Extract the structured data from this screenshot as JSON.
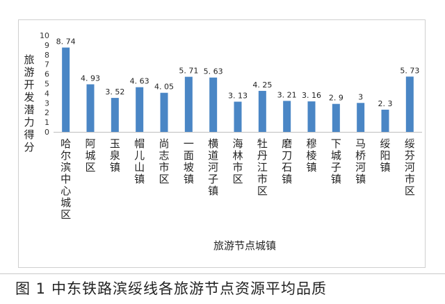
{
  "caption": {
    "figure_number": "图 1",
    "text": "中东铁路滨绥线各旅游节点资源平均品质"
  },
  "chart_data": {
    "type": "bar",
    "title": "",
    "ylabel": "旅游开发潜力得分",
    "xlabel": "旅游节点城镇",
    "ylim": [
      0,
      10
    ],
    "yticks": [
      "0",
      "1",
      "2",
      "3",
      "4",
      "5",
      "6",
      "7",
      "8",
      "9",
      "10"
    ],
    "grid": false,
    "bar_color": "#4a86c5",
    "categories": [
      "哈尔滨中心城区",
      "阿城区",
      "玉泉镇",
      "帽儿山镇",
      "尚志市区",
      "一面坡镇",
      "横道河子镇",
      "海林市区",
      "牡丹江市区",
      "磨刀石镇",
      "穆棱镇",
      "下城子镇",
      "马桥河镇",
      "绥阳镇",
      "绥芬河市区"
    ],
    "values": [
      8.74,
      4.93,
      3.52,
      4.63,
      4.05,
      5.71,
      5.63,
      3.13,
      4.25,
      3.21,
      3.16,
      2.9,
      3,
      2.3,
      5.73
    ],
    "data_labels": [
      "8. 74",
      "4. 93",
      "3. 52",
      "4. 63",
      "4. 05",
      "5. 71",
      "5. 63",
      "3. 13",
      "4. 25",
      "3. 21",
      "3. 16",
      "2. 9",
      "3",
      "2. 3",
      "5. 73"
    ]
  }
}
